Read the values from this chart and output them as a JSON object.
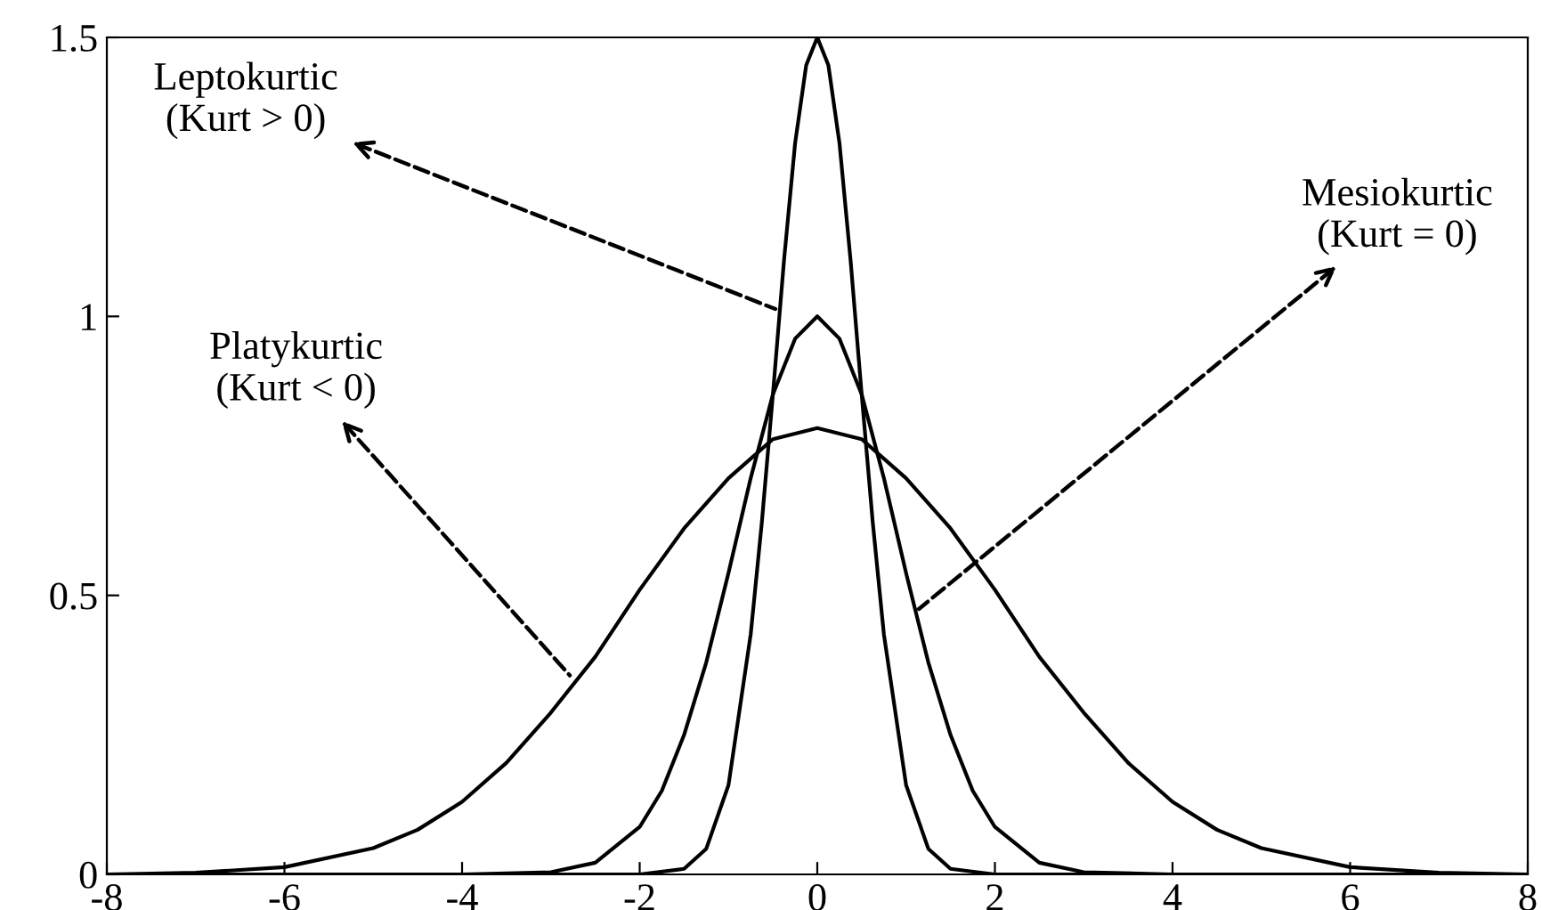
{
  "chart_data": {
    "type": "line",
    "xlim": [
      -8,
      8
    ],
    "ylim": [
      0,
      1.5
    ],
    "xticks": [
      -8,
      -6,
      -4,
      -2,
      0,
      2,
      4,
      6,
      8
    ],
    "yticks": [
      0,
      0.5,
      1,
      1.5
    ],
    "grid": false,
    "legend": false,
    "marker": "none",
    "line_style": "solid",
    "series": [
      {
        "color": "#000000",
        "x": [
          -8,
          -7,
          -6,
          -5,
          -4.5,
          -4,
          -3.5,
          -3,
          -2.5,
          -2,
          -1.5,
          -1,
          -0.5,
          0,
          0.5,
          1,
          1.5,
          2,
          2.5,
          3,
          3.5,
          4,
          4.5,
          5,
          6,
          7,
          8
        ],
        "values": [
          0,
          0.003,
          0.013,
          0.047,
          0.08,
          0.13,
          0.2,
          0.29,
          0.39,
          0.51,
          0.62,
          0.71,
          0.78,
          0.8,
          0.78,
          0.71,
          0.62,
          0.51,
          0.39,
          0.29,
          0.2,
          0.13,
          0.08,
          0.047,
          0.013,
          0.003,
          0
        ]
      },
      {
        "color": "#000000",
        "x": [
          -8,
          -4,
          -3,
          -2.5,
          -2,
          -1.75,
          -1.5,
          -1.25,
          -1,
          -0.75,
          -0.5,
          -0.25,
          0,
          0.25,
          0.5,
          0.75,
          1,
          1.25,
          1.5,
          1.75,
          2,
          2.5,
          3,
          4,
          8
        ],
        "values": [
          0,
          0,
          0.004,
          0.021,
          0.085,
          0.15,
          0.25,
          0.38,
          0.54,
          0.71,
          0.86,
          0.96,
          1,
          0.96,
          0.86,
          0.71,
          0.54,
          0.38,
          0.25,
          0.15,
          0.085,
          0.021,
          0.004,
          0,
          0
        ]
      },
      {
        "color": "#000000",
        "x": [
          -8,
          -2,
          -1.5,
          -1.25,
          -1,
          -0.75,
          -0.625,
          -0.5,
          -0.375,
          -0.25,
          -0.125,
          0,
          0.125,
          0.25,
          0.375,
          0.5,
          0.625,
          0.75,
          1,
          1.25,
          1.5,
          2,
          8
        ],
        "values": [
          0,
          0,
          0.01,
          0.046,
          0.16,
          0.43,
          0.63,
          0.86,
          1.1,
          1.31,
          1.45,
          1.5,
          1.45,
          1.31,
          1.1,
          0.86,
          0.63,
          0.43,
          0.16,
          0.046,
          0.01,
          0,
          0
        ]
      }
    ],
    "annotations": [
      {
        "text": "Leptokurtic\n(Kurt > 0)",
        "x": -0.42,
        "y": 1.01
      },
      {
        "text": "Mesiokurtic\n(Kurt = 0)",
        "x": 1.1,
        "y": 0.47
      },
      {
        "text": "Platykurtic\n(Kurt < 0)",
        "x": -2.75,
        "y": 0.35
      }
    ]
  }
}
